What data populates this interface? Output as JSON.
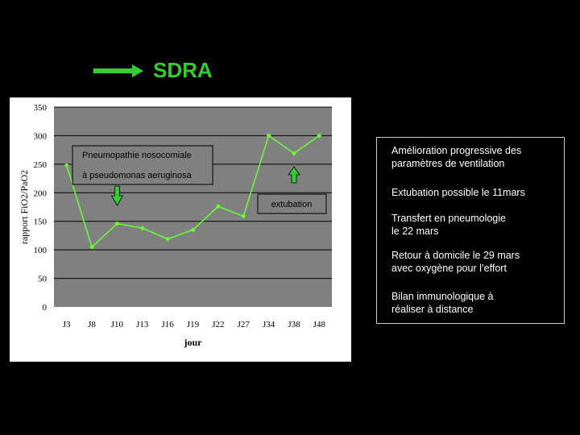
{
  "slide": {
    "title": "SDRA",
    "title_color": "#33cc33"
  },
  "info": {
    "items": [
      "Amélioration progressive des\nparamètres de ventilation",
      "Extubation possible le 11mars",
      " Transfert en pneumologie\nle 22 mars",
      "Retour à domicile le  29 mars\navec oxygène pour l’effort",
      "Bilan immunologique à\nréaliser à distance"
    ]
  },
  "chart_data": {
    "type": "line",
    "categories": [
      "J3",
      "J8",
      "J10",
      "J13",
      "J16",
      "J19",
      "J22",
      "J27",
      "J34",
      "J38",
      "J48"
    ],
    "series": [
      {
        "values": [
          248,
          105,
          146,
          138,
          119,
          135,
          176,
          159,
          300,
          269,
          300
        ],
        "color": "#66ff33"
      }
    ],
    "ylabel": "rapport FiO2/PaO2",
    "xlabel": "jour",
    "ylim": [
      0,
      350
    ],
    "yticks": [
      0,
      50,
      100,
      150,
      200,
      250,
      300,
      350
    ],
    "plot_background": "#808080",
    "grid": "y",
    "annotations": [
      {
        "text": "Pneumopathie nosocomiale",
        "at_category": "J10"
      },
      {
        "text": "à pseudomonas aeruginosa",
        "at_category": "J10"
      },
      {
        "text": "extubation",
        "at_category": "J38"
      }
    ],
    "arrows": [
      {
        "direction": "down",
        "at_category": "J10",
        "color": "#33cc33"
      },
      {
        "direction": "up",
        "at_category": "J38",
        "color": "#33cc33"
      }
    ]
  }
}
